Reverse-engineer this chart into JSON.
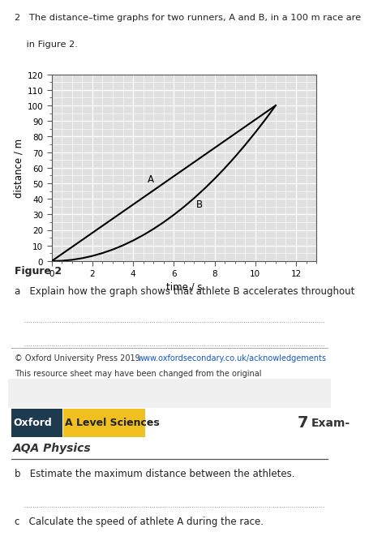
{
  "header_text_line1": "2   The distance–time graphs for two runners, A and B, in a 100 m race are",
  "header_text_line2": "    in Figure 2.",
  "figure_label": "Figure 2",
  "question_a": "a   Explain how the graph shows that athlete B accelerates throughout",
  "question_b": "b   Estimate the maximum distance between the athletes.",
  "question_c": "c   Calculate the speed of athlete A during the race.",
  "copyright_text": "© Oxford University Press 2019",
  "copyright_link": "www.oxfordsecondary.co.uk/acknowledgements",
  "resource_text": "This resource sheet may have been changed from the original",
  "oxford_text": "Oxford",
  "science_text": "A Level Sciences",
  "physics_text": "AQA Physics",
  "page_num": "7",
  "exam_text": "Exam-",
  "oxford_bg": "#1e3a4f",
  "science_bg": "#f0c020",
  "graph_bg": "#e0e0e0",
  "grid_color_major": "#ffffff",
  "grid_color_minor": "#ffffff",
  "xlim": [
    0,
    13
  ],
  "ylim": [
    0,
    120
  ],
  "xticks": [
    0,
    2,
    4,
    6,
    8,
    10,
    12
  ],
  "yticks": [
    0,
    10,
    20,
    30,
    40,
    50,
    60,
    70,
    80,
    90,
    100,
    110,
    120
  ],
  "xlabel": "time / s",
  "ylabel": "distance / m",
  "athlete_A_t": [
    0,
    1,
    2,
    3,
    4,
    5,
    6,
    7,
    8,
    9,
    10,
    11
  ],
  "athlete_A_d": [
    0,
    9.09,
    18.18,
    27.27,
    36.36,
    45.45,
    54.55,
    63.64,
    72.73,
    81.82,
    90.91,
    100
  ],
  "athlete_B_t": [
    0,
    0.5,
    1,
    1.5,
    2,
    2.5,
    3,
    3.5,
    4,
    4.5,
    5,
    5.5,
    6,
    6.5,
    7,
    7.5,
    8,
    8.5,
    9,
    9.5,
    10,
    10.5,
    11
  ],
  "athlete_B_d": [
    0,
    0.21,
    0.83,
    1.87,
    3.31,
    5.18,
    7.44,
    10.12,
    13.22,
    16.74,
    20.66,
    25.0,
    29.75,
    34.91,
    40.5,
    46.5,
    52.89,
    59.7,
    66.94,
    74.6,
    82.64,
    91.1,
    100
  ],
  "label_A_t": 4.7,
  "label_A_d": 51,
  "label_B_t": 7.1,
  "label_B_d": 35,
  "line_color": "#000000",
  "text_color": "#222222",
  "dot_line_color": "#999999",
  "divider_color": "#aaaaaa",
  "footer_divider_color": "#555555"
}
